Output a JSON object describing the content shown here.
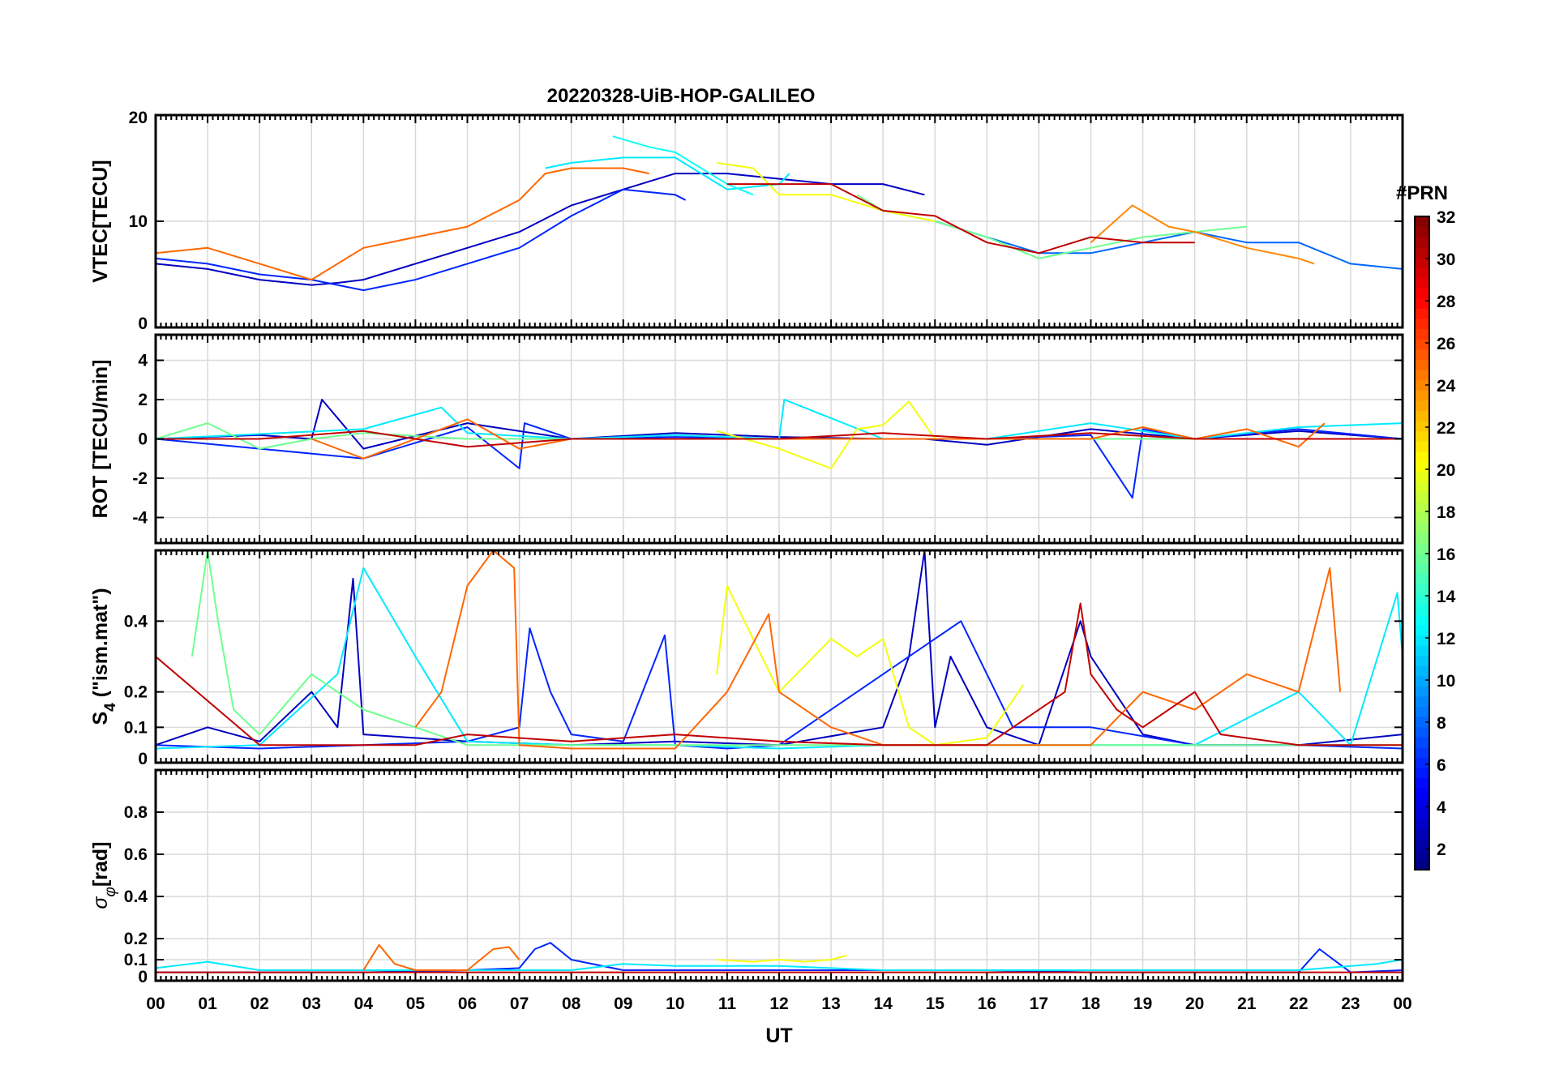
{
  "chart_data": {
    "type": "line",
    "title": "20220328-UiB-HOP-GALILEO",
    "xlabel": "UT",
    "xlim": [
      0,
      24
    ],
    "x_ticks": [
      "00",
      "01",
      "02",
      "03",
      "04",
      "05",
      "06",
      "07",
      "08",
      "09",
      "10",
      "11",
      "12",
      "13",
      "14",
      "15",
      "16",
      "17",
      "18",
      "19",
      "20",
      "21",
      "22",
      "23",
      "00"
    ],
    "grid": true,
    "panels": [
      {
        "id": "vtec",
        "ylabel": "VTEC[TECU]",
        "ylim": [
          0,
          20
        ],
        "yticks": [
          0,
          10,
          20
        ],
        "series": [
          {
            "prn": 3,
            "x": [
              0,
              1,
              2,
              3,
              3.5,
              4,
              5,
              6,
              7,
              8,
              9,
              10,
              11,
              12,
              13,
              14,
              14.8
            ],
            "y": [
              6,
              5.5,
              4.5,
              4,
              4.2,
              4.5,
              6,
              7.5,
              9,
              11.5,
              13,
              14.5,
              14.5,
              14,
              13.5,
              13.5,
              12.5
            ]
          },
          {
            "prn": 6,
            "x": [
              0,
              1,
              2,
              3,
              4,
              5,
              6,
              7,
              8,
              9,
              10,
              10.2
            ],
            "y": [
              6.5,
              6,
              5,
              4.5,
              3.5,
              4.5,
              6,
              7.5,
              10.5,
              13,
              12.5,
              12
            ]
          },
          {
            "prn": 8,
            "x": [
              15,
              16,
              17,
              18,
              19,
              20,
              21,
              22,
              23,
              24
            ],
            "y": [
              10,
              8.5,
              7,
              7,
              8,
              9,
              8,
              8,
              6,
              5.5
            ]
          },
          {
            "prn": 12,
            "x": [
              7.5,
              8,
              9,
              10,
              11,
              12,
              12.2
            ],
            "y": [
              15,
              15.5,
              16,
              16,
              13,
              13.5,
              14.5
            ]
          },
          {
            "prn": 13,
            "x": [
              8.8,
              9.5,
              10,
              11,
              11.5
            ],
            "y": [
              18,
              17,
              16.5,
              13.5,
              12.5
            ]
          },
          {
            "prn": 16,
            "x": [
              13.5,
              14,
              15,
              16,
              17,
              18,
              19,
              20,
              21
            ],
            "y": [
              12.5,
              11,
              10,
              8.5,
              6.5,
              7.5,
              8.5,
              9,
              9.5
            ]
          },
          {
            "prn": 20,
            "x": [
              10.8,
              11.5,
              12,
              13,
              14,
              15
            ],
            "y": [
              15.5,
              15,
              12.5,
              12.5,
              11,
              10
            ]
          },
          {
            "prn": 25,
            "x": [
              0,
              1,
              2,
              3,
              4,
              5,
              6,
              7,
              7.5,
              8,
              9,
              9.5
            ],
            "y": [
              7,
              7.5,
              6,
              4.5,
              7.5,
              8.5,
              9.5,
              12,
              14.5,
              15,
              15,
              14.5
            ]
          },
          {
            "prn": 24,
            "x": [
              18,
              18.8,
              19.5,
              20,
              21,
              22,
              22.3
            ],
            "y": [
              8,
              11.5,
              9.5,
              9,
              7.5,
              6.5,
              6
            ]
          },
          {
            "prn": 30,
            "x": [
              11,
              12,
              13,
              14,
              15,
              16,
              17,
              18,
              19,
              20
            ],
            "y": [
              13.5,
              13.5,
              13.5,
              11,
              10.5,
              8,
              7,
              8.5,
              8,
              8
            ]
          }
        ]
      },
      {
        "id": "rot",
        "ylabel": "ROT [TECU/min]",
        "ylim": [
          -5.3,
          5.3
        ],
        "yticks": [
          -4,
          -2,
          0,
          2,
          4
        ],
        "series": [
          {
            "prn": 3,
            "x": [
              0,
              2,
              3,
              3.2,
              4,
              6,
              8,
              10,
              12,
              14,
              14.8,
              16,
              18,
              20,
              22,
              24
            ],
            "y": [
              0,
              0.2,
              0,
              2,
              -0.5,
              0.8,
              0,
              0.3,
              0.1,
              0,
              0,
              -0.3,
              0.5,
              0,
              0.4,
              0
            ]
          },
          {
            "prn": 6,
            "x": [
              0,
              2,
              4,
              6,
              7,
              7.1,
              8,
              10,
              12,
              14,
              16,
              18,
              18.8,
              19,
              20,
              22,
              24
            ],
            "y": [
              0,
              -0.5,
              -1,
              0.6,
              -1.5,
              0.8,
              0,
              0.1,
              0,
              0,
              0,
              0.2,
              -3,
              0.5,
              0,
              0.5,
              0
            ]
          },
          {
            "prn": 12,
            "x": [
              0,
              4,
              5.5,
              6,
              8,
              10,
              12,
              12.1,
              14,
              16,
              18,
              20,
              22,
              24
            ],
            "y": [
              0,
              0.5,
              1.6,
              0.3,
              0,
              0.2,
              0,
              2,
              0,
              0,
              0.8,
              0,
              0.6,
              0.8
            ]
          },
          {
            "prn": 16,
            "x": [
              0,
              1,
              2,
              3,
              4,
              6,
              8,
              10,
              12,
              14,
              16,
              18,
              20,
              22,
              24
            ],
            "y": [
              0,
              0.8,
              -0.5,
              0,
              0.3,
              0,
              0,
              0,
              0,
              0,
              0,
              0,
              0,
              0,
              0
            ]
          },
          {
            "prn": 20,
            "x": [
              10.8,
              12,
              13,
              13.5,
              14,
              14.5,
              15
            ],
            "y": [
              0.4,
              -0.5,
              -1.5,
              0.5,
              0.7,
              1.9,
              0
            ]
          },
          {
            "prn": 25,
            "x": [
              3,
              4,
              6,
              7,
              8,
              9,
              9.5,
              18,
              19,
              20,
              21,
              22,
              22.5
            ],
            "y": [
              0,
              -1,
              1,
              -0.5,
              0,
              0,
              0,
              0,
              0.6,
              0,
              0.5,
              -0.4,
              0.8
            ]
          },
          {
            "prn": 30,
            "x": [
              0,
              2,
              4,
              6,
              8,
              10,
              12,
              14,
              16,
              18,
              20,
              22,
              24
            ],
            "y": [
              0,
              0,
              0.4,
              -0.4,
              0,
              0,
              0,
              0.3,
              0,
              0.3,
              0,
              0,
              0
            ]
          }
        ]
      },
      {
        "id": "s4",
        "ylabel": "S4 (\"ism.mat\")",
        "ylabel_main": "S",
        "ylabel_sub": "4",
        "ylabel_rest": " (\"ism.mat\")",
        "ylim": [
          0,
          0.6
        ],
        "yticks": [
          0,
          0.1,
          0.2,
          0.4
        ],
        "series": [
          {
            "prn": 3,
            "x": [
              0,
              1,
              2,
              3,
              3.5,
              3.8,
              4,
              6,
              8,
              10,
              12,
              14,
              14.5,
              14.8,
              15,
              15.3,
              16,
              17,
              17.8,
              18,
              19,
              20,
              22,
              24
            ],
            "y": [
              0.05,
              0.1,
              0.06,
              0.2,
              0.1,
              0.52,
              0.08,
              0.06,
              0.05,
              0.06,
              0.05,
              0.1,
              0.3,
              0.6,
              0.1,
              0.3,
              0.1,
              0.05,
              0.4,
              0.3,
              0.08,
              0.05,
              0.05,
              0.08
            ]
          },
          {
            "prn": 6,
            "x": [
              0,
              2,
              4,
              6,
              7,
              7.2,
              7.6,
              8,
              9,
              9.8,
              10,
              11,
              12,
              14,
              15.5,
              16.5,
              18,
              20,
              22,
              24
            ],
            "y": [
              0.05,
              0.04,
              0.05,
              0.06,
              0.1,
              0.38,
              0.2,
              0.08,
              0.06,
              0.36,
              0.05,
              0.04,
              0.05,
              0.25,
              0.4,
              0.1,
              0.1,
              0.05,
              0.05,
              0.04
            ]
          },
          {
            "prn": 12,
            "x": [
              0,
              2,
              3.5,
              4,
              5,
              6,
              8,
              10,
              12,
              14,
              16,
              18,
              20,
              22,
              23,
              23.9,
              24
            ],
            "y": [
              0.04,
              0.05,
              0.25,
              0.55,
              0.3,
              0.06,
              0.05,
              0.05,
              0.04,
              0.05,
              0.05,
              0.05,
              0.05,
              0.2,
              0.05,
              0.48,
              0.3
            ]
          },
          {
            "prn": 16,
            "x": [
              0.7,
              1,
              1.2,
              1.5,
              2,
              3,
              4,
              6,
              8,
              10,
              12,
              14,
              16,
              18,
              20,
              22,
              24
            ],
            "y": [
              0.3,
              0.6,
              0.4,
              0.15,
              0.08,
              0.25,
              0.15,
              0.05,
              0.05,
              0.05,
              0.05,
              0.05,
              0.05,
              0.05,
              0.05,
              0.05,
              0.05
            ]
          },
          {
            "prn": 20,
            "x": [
              10.8,
              11,
              12,
              13,
              13.5,
              14,
              14.5,
              15,
              16,
              16.7
            ],
            "y": [
              0.25,
              0.5,
              0.2,
              0.35,
              0.3,
              0.35,
              0.1,
              0.05,
              0.07,
              0.22
            ]
          },
          {
            "prn": 25,
            "x": [
              5,
              5.5,
              6,
              6.5,
              6.9,
              7,
              8,
              10,
              11,
              11.8,
              12,
              13,
              14,
              18,
              19,
              20,
              21,
              22,
              22.6,
              22.8
            ],
            "y": [
              0.1,
              0.2,
              0.5,
              0.6,
              0.55,
              0.05,
              0.04,
              0.04,
              0.2,
              0.42,
              0.2,
              0.1,
              0.05,
              0.05,
              0.2,
              0.15,
              0.25,
              0.2,
              0.55,
              0.2
            ]
          },
          {
            "prn": 30,
            "x": [
              0,
              2,
              3,
              4,
              5,
              6,
              8,
              10,
              12,
              14,
              16,
              17.5,
              17.8,
              18,
              18.5,
              19,
              20,
              20.5,
              22,
              24
            ],
            "y": [
              0.3,
              0.05,
              0.05,
              0.05,
              0.05,
              0.08,
              0.06,
              0.08,
              0.06,
              0.05,
              0.05,
              0.2,
              0.45,
              0.25,
              0.15,
              0.1,
              0.2,
              0.08,
              0.05,
              0.05
            ]
          }
        ]
      },
      {
        "id": "sigma",
        "ylabel": "σφ[rad]",
        "ylabel_main": "σ",
        "ylabel_sub": "φ",
        "ylabel_rest": "[rad]",
        "ylim": [
          0,
          1
        ],
        "yticks": [
          0,
          0.1,
          0.2,
          0.4,
          0.6,
          0.8
        ],
        "series": [
          {
            "prn": 6,
            "x": [
              0,
              2,
              4,
              6,
              7,
              7.3,
              7.6,
              8,
              9,
              10,
              12,
              14,
              16,
              18,
              20,
              22,
              22.4,
              23,
              24
            ],
            "y": [
              0.04,
              0.04,
              0.04,
              0.05,
              0.06,
              0.15,
              0.18,
              0.1,
              0.05,
              0.05,
              0.05,
              0.05,
              0.05,
              0.04,
              0.04,
              0.04,
              0.15,
              0.04,
              0.05
            ]
          },
          {
            "prn": 12,
            "x": [
              0,
              1,
              2,
              4,
              6,
              8,
              9,
              10,
              12,
              14,
              16,
              18,
              20,
              22,
              23.5,
              24
            ],
            "y": [
              0.06,
              0.09,
              0.05,
              0.05,
              0.05,
              0.05,
              0.08,
              0.07,
              0.07,
              0.05,
              0.05,
              0.05,
              0.05,
              0.05,
              0.08,
              0.1
            ]
          },
          {
            "prn": 20,
            "x": [
              10.8,
              11.5,
              12,
              12.5,
              13,
              13.3
            ],
            "y": [
              0.1,
              0.09,
              0.1,
              0.09,
              0.1,
              0.12
            ]
          },
          {
            "prn": 25,
            "x": [
              4,
              4.3,
              4.6,
              5,
              6,
              6.5,
              6.8,
              7
            ],
            "y": [
              0.05,
              0.17,
              0.08,
              0.05,
              0.05,
              0.15,
              0.16,
              0.1
            ]
          },
          {
            "prn": 30,
            "x": [
              0,
              4,
              8,
              12,
              16,
              20,
              24
            ],
            "y": [
              0.04,
              0.04,
              0.04,
              0.04,
              0.04,
              0.04,
              0.04
            ]
          }
        ]
      }
    ],
    "colorbar": {
      "title": "#PRN",
      "colormap": "jet",
      "range": [
        1,
        32
      ],
      "tick_labels": [
        "2",
        "4",
        "6",
        "8",
        "10",
        "12",
        "14",
        "16",
        "18",
        "20",
        "22",
        "24",
        "26",
        "28",
        "30",
        "32"
      ]
    }
  }
}
